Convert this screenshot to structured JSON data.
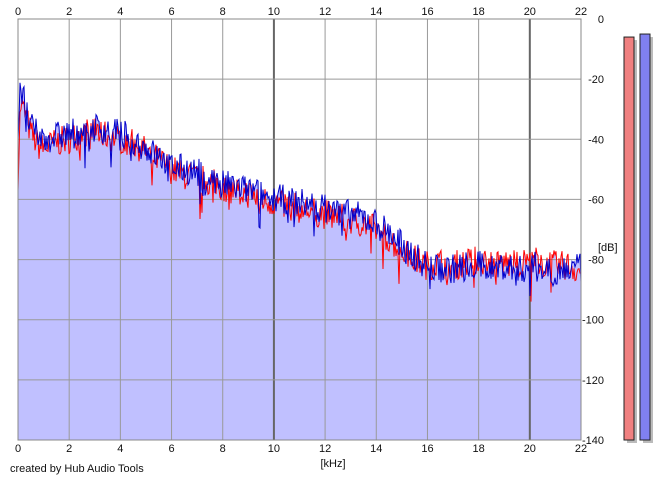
{
  "credit": "created by Hub Audio Tools",
  "colors": {
    "fill": "#c0c0ff",
    "left_channel": "#ff0000",
    "right_channel": "#0000cc",
    "grid": "#999999",
    "grid_major": "#666666",
    "meter_left": "#f08080",
    "meter_right": "#8080f0"
  },
  "chart_data": {
    "type": "line",
    "title": "",
    "xlabel": "[kHz]",
    "ylabel": "[dB]",
    "xlim": [
      0,
      22
    ],
    "ylim": [
      -140,
      0
    ],
    "x_ticks": [
      "0",
      "2",
      "4",
      "6",
      "8",
      "10",
      "12",
      "14",
      "16",
      "18",
      "20",
      "22"
    ],
    "y_ticks": [
      "0",
      "-20",
      "-40",
      "-60",
      "-80",
      "-100",
      "-120",
      "-140"
    ],
    "grid": true,
    "x_tick_positions_top_and_bottom": true,
    "y_ticks_side": "right",
    "legend": "none",
    "series": [
      {
        "color": "#ff0000",
        "x": [
          0.0,
          0.1,
          0.3,
          0.5,
          0.8,
          1.0,
          1.5,
          2.0,
          2.5,
          3.0,
          3.5,
          4.0,
          4.5,
          5.0,
          5.5,
          6.0,
          6.5,
          7.0,
          7.5,
          8.0,
          8.5,
          9.0,
          9.5,
          10.0,
          10.5,
          11.0,
          11.5,
          12.0,
          12.5,
          13.0,
          13.5,
          14.0,
          14.5,
          15.0,
          15.5,
          16.0,
          16.5,
          17.0,
          17.5,
          18.0,
          18.5,
          19.0,
          19.5,
          20.0,
          20.5,
          21.0,
          21.5,
          22.0
        ],
        "y": [
          -52,
          -28,
          -32,
          -38,
          -42,
          -43,
          -41,
          -40,
          -38,
          -37,
          -39,
          -40,
          -41,
          -44,
          -47,
          -50,
          -52,
          -53,
          -54,
          -56,
          -57,
          -58,
          -60,
          -61,
          -62,
          -63,
          -64,
          -65,
          -66,
          -67,
          -68,
          -70,
          -73,
          -77,
          -80,
          -82,
          -81,
          -82,
          -81,
          -80,
          -81,
          -81,
          -82,
          -80,
          -81,
          -82,
          -82,
          -84
        ]
      },
      {
        "color": "#0000cc",
        "x": [
          0.0,
          0.1,
          0.3,
          0.5,
          0.8,
          1.0,
          1.5,
          2.0,
          2.5,
          3.0,
          3.5,
          4.0,
          4.5,
          5.0,
          5.5,
          6.0,
          6.5,
          7.0,
          7.5,
          8.0,
          8.5,
          9.0,
          9.5,
          10.0,
          10.5,
          11.0,
          11.5,
          12.0,
          12.5,
          13.0,
          13.5,
          14.0,
          14.5,
          15.0,
          15.5,
          16.0,
          16.5,
          17.0,
          17.5,
          18.0,
          18.5,
          19.0,
          19.5,
          20.0,
          20.5,
          21.0,
          21.5,
          22.0
        ],
        "y": [
          -40,
          -22,
          -30,
          -36,
          -39,
          -40,
          -39,
          -38,
          -37,
          -36,
          -37,
          -38,
          -40,
          -43,
          -46,
          -49,
          -50,
          -51,
          -53,
          -55,
          -56,
          -57,
          -58,
          -60,
          -60,
          -61,
          -62,
          -63,
          -64,
          -65,
          -66,
          -68,
          -71,
          -75,
          -79,
          -82,
          -83,
          -83,
          -82,
          -82,
          -83,
          -82,
          -84,
          -82,
          -83,
          -84,
          -83,
          -83
        ]
      }
    ],
    "meters": [
      {
        "color": "#f08080",
        "value_db": -6
      },
      {
        "color": "#8080f0",
        "value_db": -5
      }
    ]
  }
}
